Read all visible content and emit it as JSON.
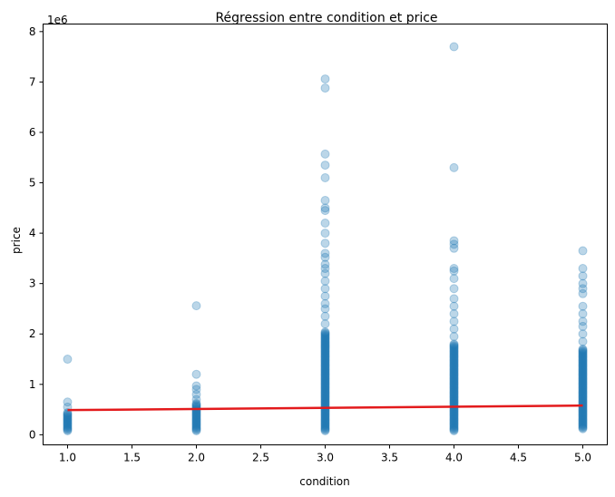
{
  "chart_data": {
    "type": "scatter",
    "title": "Régression entre condition et price",
    "xlabel": "condition",
    "ylabel": "price",
    "y_offset_label": "1e6",
    "xlim": [
      0.81,
      5.19
    ],
    "ylim": [
      -0.2,
      8.15
    ],
    "y_scale_note": "values in units of 1e6",
    "x_ticks": [
      1.0,
      1.5,
      2.0,
      2.5,
      3.0,
      3.5,
      4.0,
      4.5,
      5.0
    ],
    "x_tick_labels": [
      "1.0",
      "1.5",
      "2.0",
      "2.5",
      "3.0",
      "3.5",
      "4.0",
      "4.5",
      "5.0"
    ],
    "y_ticks": [
      0,
      1,
      2,
      3,
      4,
      5,
      6,
      7,
      8
    ],
    "y_tick_labels": [
      "0",
      "1",
      "2",
      "3",
      "4",
      "5",
      "6",
      "7",
      "8"
    ],
    "grid": false,
    "point_color": "#1f77b4",
    "point_alpha": 0.3,
    "line_color": "#e31a1c",
    "groups": [
      {
        "x": 1.0,
        "dense_range": [
          0.08,
          0.45
        ],
        "outliers": [
          0.55,
          0.65,
          1.5
        ]
      },
      {
        "x": 2.0,
        "dense_range": [
          0.08,
          0.62
        ],
        "outliers": [
          0.7,
          0.8,
          0.9,
          0.97,
          1.2,
          2.56
        ]
      },
      {
        "x": 3.0,
        "dense_range": [
          0.08,
          2.05
        ],
        "outliers": [
          2.2,
          2.35,
          2.5,
          2.6,
          2.75,
          2.9,
          3.05,
          3.2,
          3.3,
          3.38,
          3.52,
          3.6,
          3.8,
          4.0,
          4.2,
          4.45,
          4.5,
          4.65,
          5.1,
          5.35,
          5.57,
          6.88,
          7.06
        ]
      },
      {
        "x": 4.0,
        "dense_range": [
          0.08,
          1.8
        ],
        "outliers": [
          1.95,
          2.1,
          2.25,
          2.4,
          2.55,
          2.7,
          2.9,
          3.1,
          3.25,
          3.3,
          3.7,
          3.78,
          3.85,
          5.3,
          7.7
        ]
      },
      {
        "x": 5.0,
        "dense_range": [
          0.12,
          1.7
        ],
        "outliers": [
          1.85,
          2.0,
          2.15,
          2.25,
          2.4,
          2.55,
          2.8,
          2.9,
          3.0,
          3.15,
          3.3,
          3.65
        ]
      }
    ],
    "regression_line": {
      "x": [
        1.0,
        5.0
      ],
      "y": [
        0.49,
        0.58
      ]
    }
  }
}
